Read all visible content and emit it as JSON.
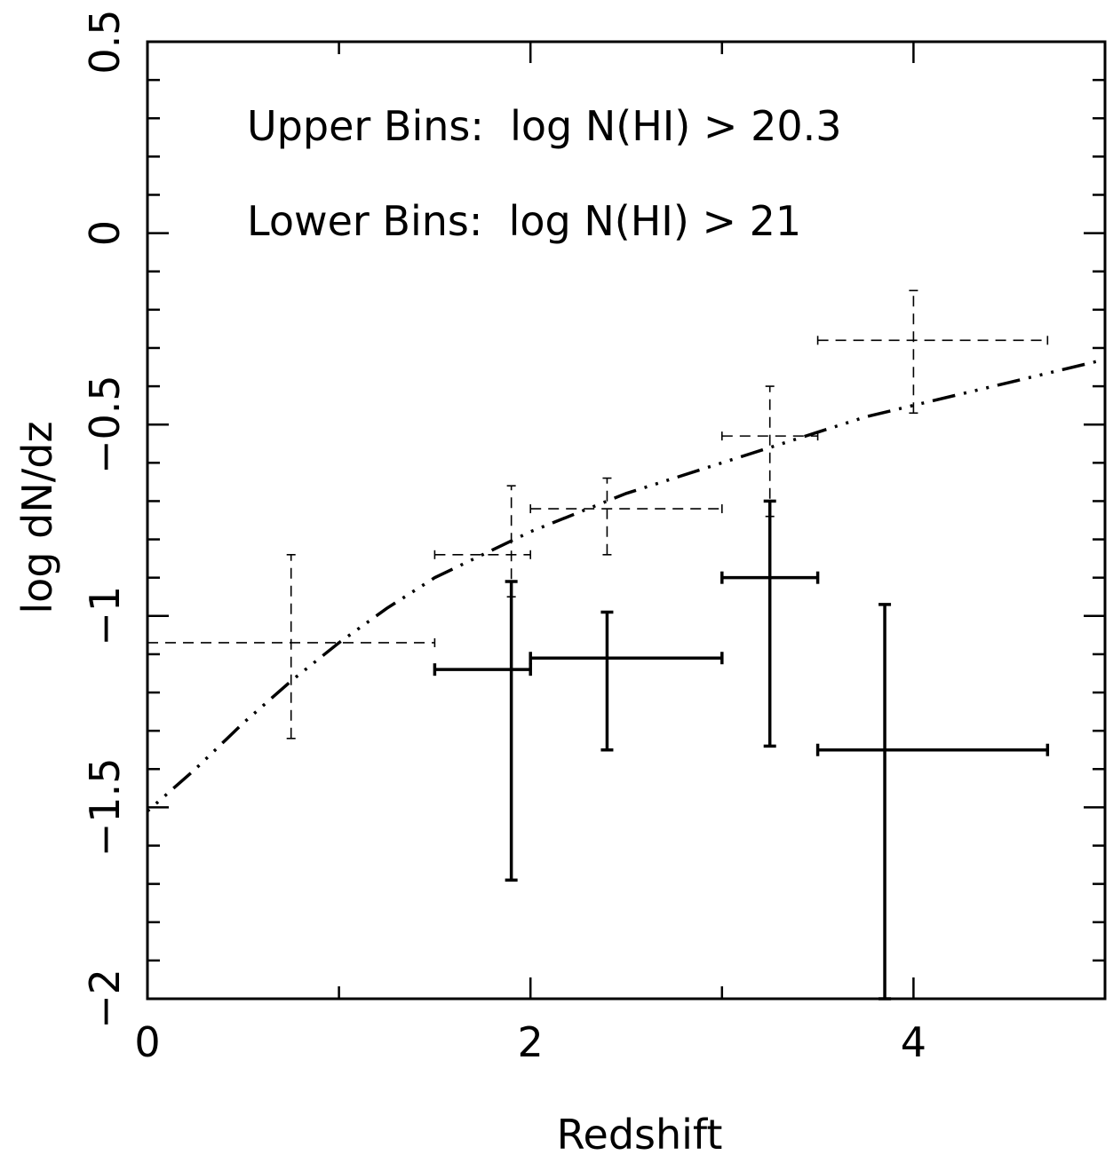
{
  "chart_data": {
    "type": "scatter",
    "title": "",
    "xlabel": "Redshift",
    "ylabel": "log dN/dz",
    "xlim": [
      0,
      5
    ],
    "ylim": [
      -2,
      0.5
    ],
    "x_ticks": [
      0,
      2,
      4
    ],
    "x_tick_labels": [
      "0",
      "2",
      "4"
    ],
    "y_ticks": [
      -2,
      -1.5,
      -1,
      -0.5,
      0,
      0.5
    ],
    "y_tick_labels": [
      "−2",
      "−1.5",
      "−1",
      "−0.5",
      "0",
      "0.5"
    ],
    "x_minor_step": 1,
    "y_minor_step": 0.1,
    "grid": false,
    "annotations": [
      "Upper Bins:  log N(HI) > 20.3",
      "Lower Bins:  log N(HI) > 21"
    ],
    "series": [
      {
        "style": "dashed",
        "points": [
          {
            "x": 0.75,
            "y": -1.07,
            "xlo": 0.0,
            "xhi": 1.5,
            "ylo": -1.32,
            "yhi": -0.84
          },
          {
            "x": 1.9,
            "y": -0.84,
            "xlo": 1.5,
            "xhi": 2.0,
            "ylo": -0.95,
            "yhi": -0.66
          },
          {
            "x": 2.4,
            "y": -0.72,
            "xlo": 2.0,
            "xhi": 3.0,
            "ylo": -0.84,
            "yhi": -0.64
          },
          {
            "x": 3.25,
            "y": -0.53,
            "xlo": 3.0,
            "xhi": 3.5,
            "ylo": -0.74,
            "yhi": -0.4
          },
          {
            "x": 4.0,
            "y": -0.28,
            "xlo": 3.5,
            "xhi": 4.7,
            "ylo": -0.47,
            "yhi": -0.15
          }
        ]
      },
      {
        "style": "solid",
        "points": [
          {
            "x": 1.9,
            "y": -1.14,
            "xlo": 1.5,
            "xhi": 2.0,
            "ylo": -1.69,
            "yhi": -0.91
          },
          {
            "x": 2.4,
            "y": -1.11,
            "xlo": 2.0,
            "xhi": 3.0,
            "ylo": -1.35,
            "yhi": -0.99
          },
          {
            "x": 3.25,
            "y": -0.9,
            "xlo": 3.0,
            "xhi": 3.5,
            "ylo": -1.34,
            "yhi": -0.7
          },
          {
            "x": 3.85,
            "y": -1.35,
            "xlo": 3.5,
            "xhi": 4.7,
            "ylo": -2.0,
            "yhi": -0.97
          }
        ]
      }
    ],
    "curve": {
      "style": "dash-dot",
      "x": [
        0,
        0.25,
        0.5,
        0.75,
        1.0,
        1.25,
        1.5,
        1.75,
        2.0,
        2.25,
        2.5,
        2.75,
        3.0,
        3.25,
        3.5,
        3.75,
        4.0,
        4.25,
        4.5,
        4.75,
        5.0
      ],
      "y": [
        -1.51,
        -1.4,
        -1.28,
        -1.17,
        -1.07,
        -0.98,
        -0.9,
        -0.84,
        -0.78,
        -0.73,
        -0.68,
        -0.64,
        -0.6,
        -0.56,
        -0.52,
        -0.48,
        -0.45,
        -0.42,
        -0.39,
        -0.36,
        -0.33
      ]
    }
  }
}
